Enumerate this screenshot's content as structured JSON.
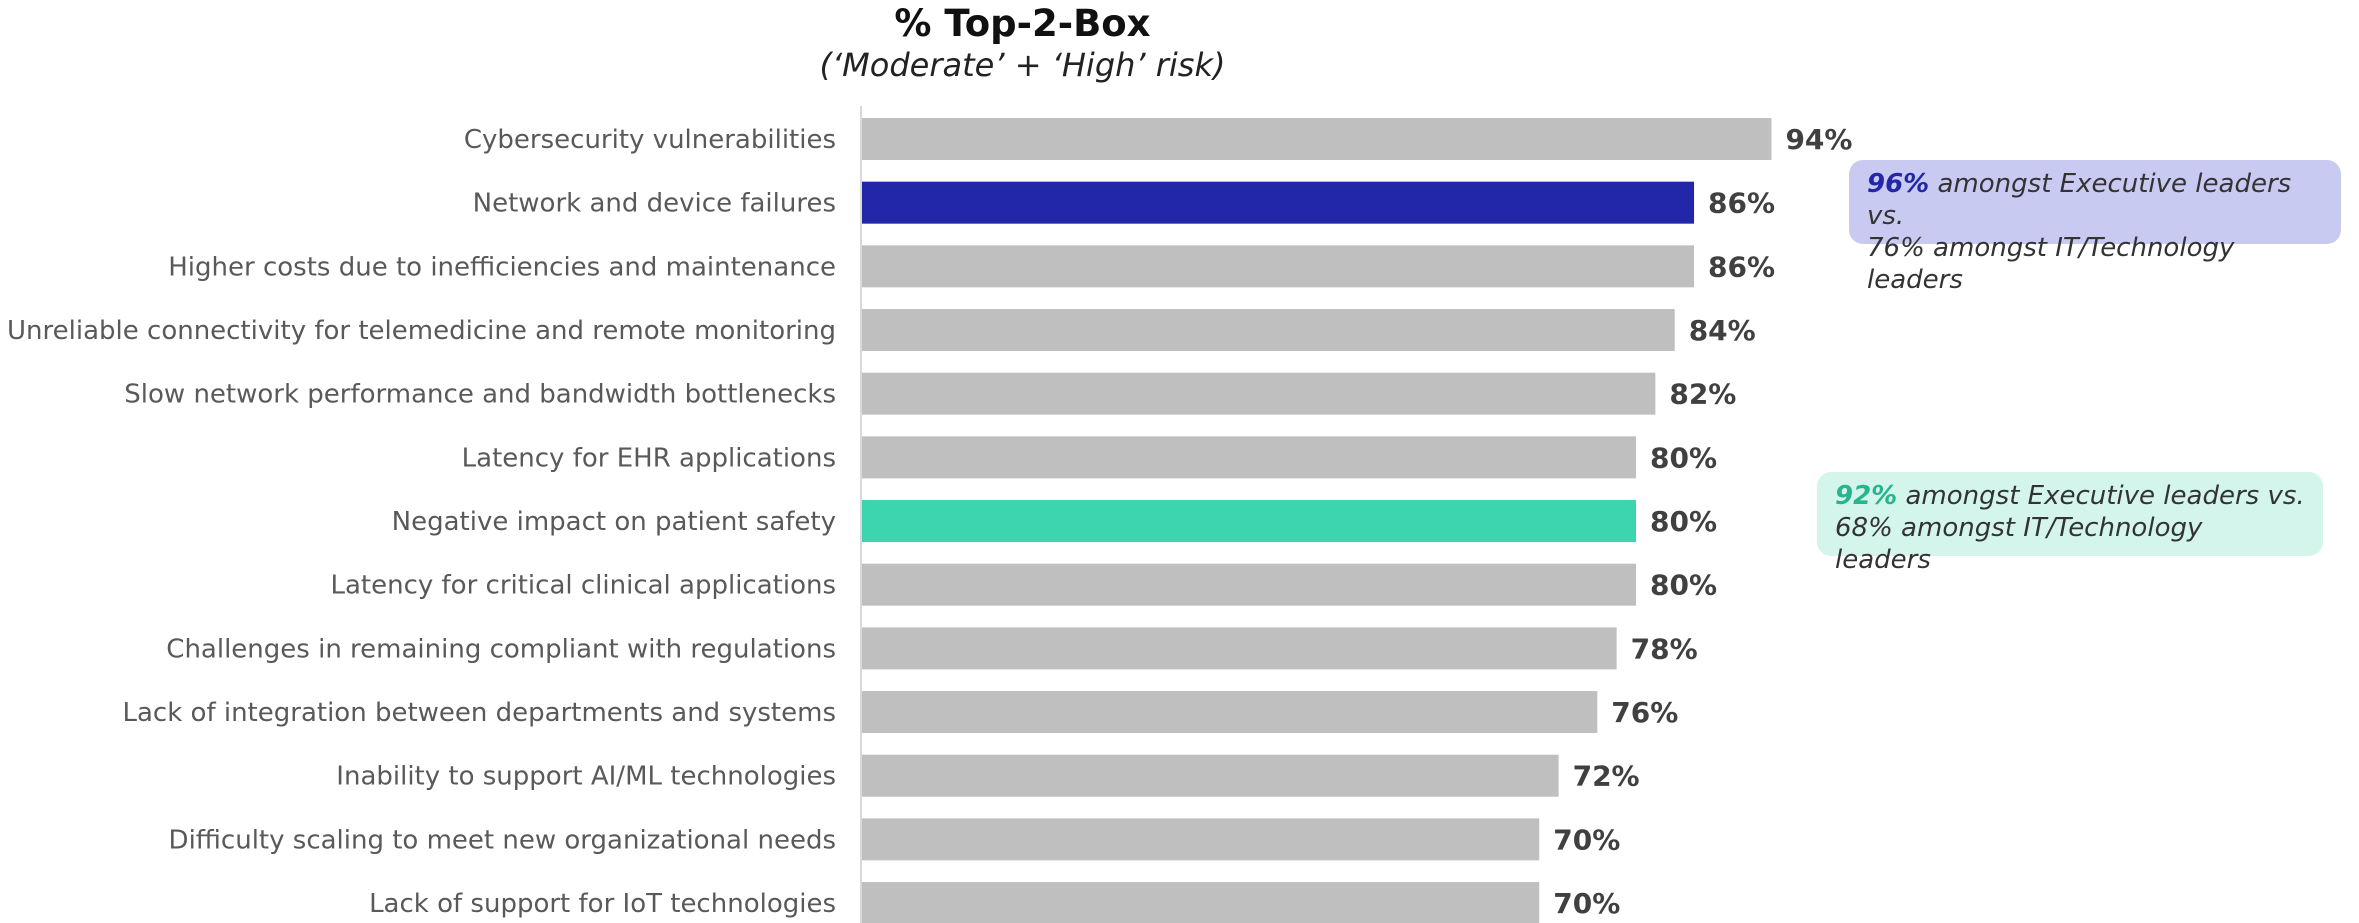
{
  "chart_data": {
    "type": "bar",
    "orientation": "horizontal",
    "title": "% Top-2-Box",
    "subtitle": "(‘Moderate’ + ‘High’ risk)",
    "categories": [
      "Cybersecurity vulnerabilities",
      "Network and device failures",
      "Higher costs due to inefficiencies and maintenance",
      "Unreliable connectivity for telemedicine and remote monitoring",
      "Slow network performance and bandwidth bottlenecks",
      "Latency for EHR applications",
      "Negative impact on patient safety",
      "Latency for critical clinical applications",
      "Challenges in remaining compliant with regulations",
      "Lack of integration between departments and systems",
      "Inability to support AI/ML technologies",
      "Difficulty scaling to meet new organizational needs",
      "Lack of support for IoT technologies"
    ],
    "values": [
      94,
      86,
      86,
      84,
      82,
      80,
      80,
      80,
      78,
      76,
      72,
      70,
      70
    ],
    "value_labels": [
      "94%",
      "86%",
      "86%",
      "84%",
      "82%",
      "80%",
      "80%",
      "80%",
      "78%",
      "76%",
      "72%",
      "70%",
      "70%"
    ],
    "xlim": [
      0,
      100
    ],
    "grid": false,
    "bar_color": "#bfbfbf",
    "highlights": [
      {
        "category_index": 1,
        "color": "#2127a8"
      },
      {
        "category_index": 6,
        "color": "#3dd5b0"
      }
    ]
  },
  "callouts": [
    {
      "highlight": "96%",
      "highlight_color": "#2127a8",
      "text_line1": " amongst Executive leaders vs.",
      "text_line2": "76% amongst IT/Technology leaders",
      "background": "#c9caf2"
    },
    {
      "highlight": "92%",
      "highlight_color": "#26b58d",
      "text_line1": " amongst Executive leaders vs.",
      "text_line2": "68% amongst IT/Technology leaders",
      "background": "#d3f5ec"
    }
  ]
}
